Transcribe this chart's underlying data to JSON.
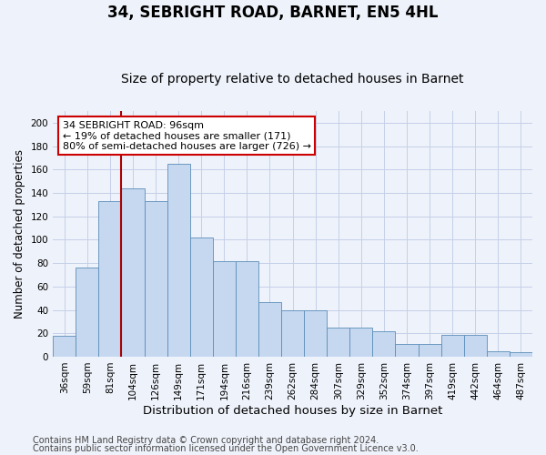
{
  "title": "34, SEBRIGHT ROAD, BARNET, EN5 4HL",
  "subtitle": "Size of property relative to detached houses in Barnet",
  "xlabel": "Distribution of detached houses by size in Barnet",
  "ylabel": "Number of detached properties",
  "categories": [
    "36sqm",
    "59sqm",
    "81sqm",
    "104sqm",
    "126sqm",
    "149sqm",
    "171sqm",
    "194sqm",
    "216sqm",
    "239sqm",
    "262sqm",
    "284sqm",
    "307sqm",
    "329sqm",
    "352sqm",
    "374sqm",
    "397sqm",
    "419sqm",
    "442sqm",
    "464sqm",
    "487sqm"
  ],
  "bar_heights": [
    18,
    76,
    133,
    144,
    133,
    165,
    102,
    82,
    82,
    47,
    40,
    40,
    25,
    25,
    22,
    11,
    11,
    19,
    19,
    5,
    4
  ],
  "bar_color": "#c5d8f0",
  "bar_edge_color": "#5b8db8",
  "vline_position": 2.5,
  "vline_color": "#aa0000",
  "annotation_text": "34 SEBRIGHT ROAD: 96sqm\n← 19% of detached houses are smaller (171)\n80% of semi-detached houses are larger (726) →",
  "annotation_box_facecolor": "white",
  "annotation_box_edgecolor": "#cc0000",
  "background_color": "#eef2fa",
  "grid_color": "#c5cfe8",
  "ylim": [
    0,
    210
  ],
  "yticks": [
    0,
    20,
    40,
    60,
    80,
    100,
    120,
    140,
    160,
    180,
    200
  ],
  "footer1": "Contains HM Land Registry data © Crown copyright and database right 2024.",
  "footer2": "Contains public sector information licensed under the Open Government Licence v3.0.",
  "title_fontsize": 12,
  "subtitle_fontsize": 10,
  "xlabel_fontsize": 9.5,
  "ylabel_fontsize": 8.5,
  "tick_fontsize": 7.5,
  "annotation_fontsize": 8,
  "footer_fontsize": 7
}
